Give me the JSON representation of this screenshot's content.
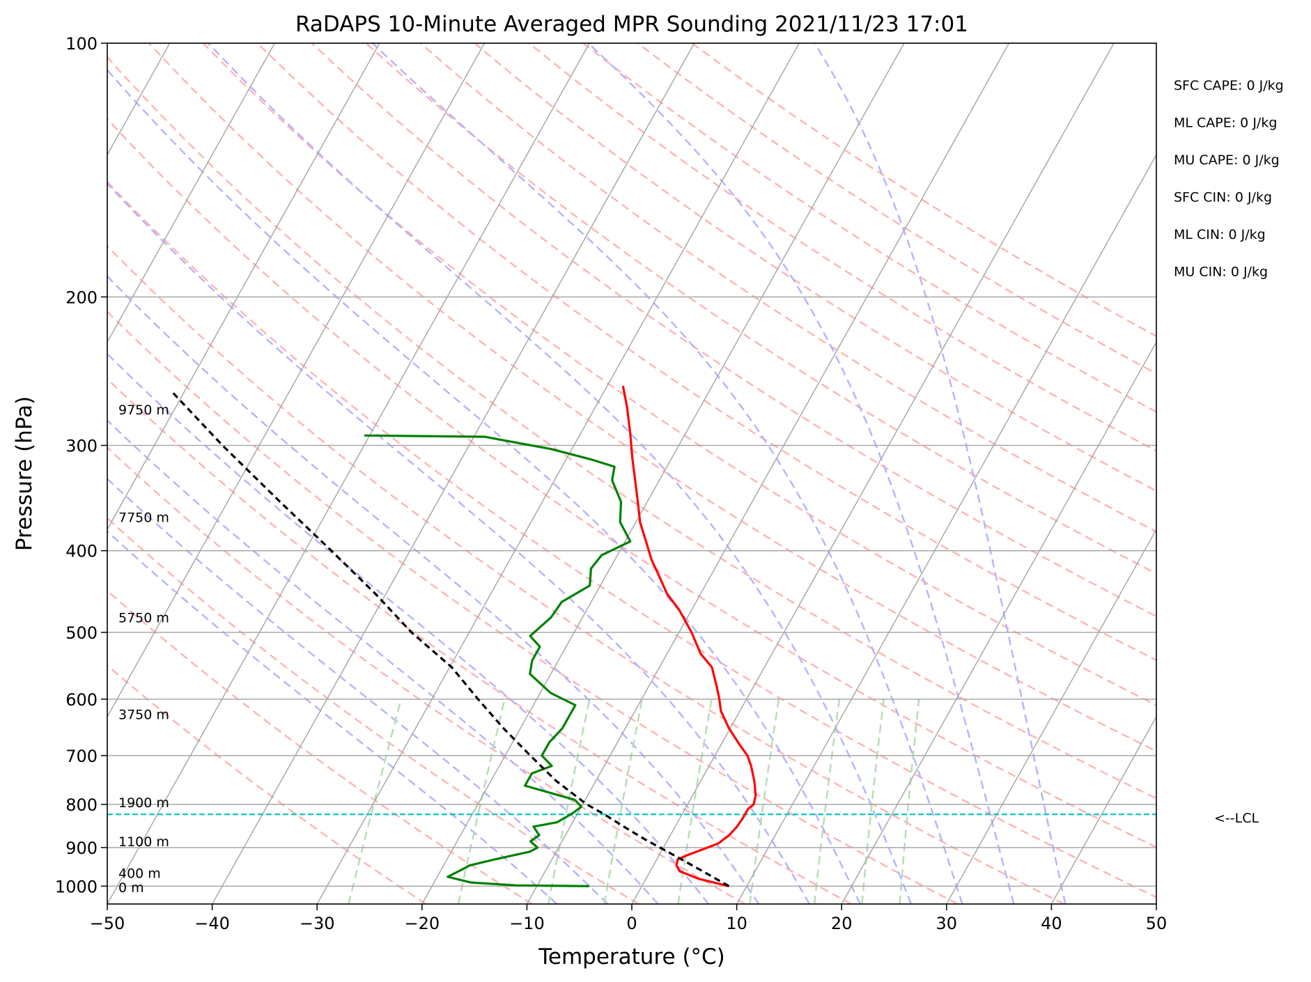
{
  "chart_data": {
    "type": "skew-t sounding",
    "title": "RaDAPS 10-Minute Averaged MPR Sounding 2021/11/23 17:01",
    "xlabel": "Temperature (°C)",
    "ylabel": "Pressure (hPa)",
    "xlim": [
      -50,
      50
    ],
    "ylim": [
      1050,
      100
    ],
    "y_scale": "log",
    "x_ticks": [
      -50,
      -40,
      -30,
      -20,
      -10,
      0,
      10,
      20,
      30,
      40,
      50
    ],
    "x_tick_labels": [
      "−50",
      "−40",
      "−30",
      "−20",
      "−10",
      "0",
      "10",
      "20",
      "30",
      "40",
      "50"
    ],
    "y_ticks": [
      1000,
      900,
      800,
      700,
      600,
      500,
      400,
      300,
      200,
      100
    ],
    "y_tick_labels": [
      "1000",
      "900",
      "800",
      "700",
      "600",
      "500",
      "400",
      "300",
      "200",
      "100"
    ],
    "grid": true,
    "colors": {
      "temperature": "#ff0000",
      "dewpoint": "#008000",
      "parcel": "#000000",
      "lcl": "#00bfbf",
      "isotherm": "#a8a8a8",
      "dry_adiabat": "#ffb3b3",
      "moist_adiabat": "#b3b3ff",
      "mixing_ratio": "#b3ddb3"
    },
    "series": [
      {
        "key": "temperature",
        "points": [
          [
            1000,
            8.3
          ],
          [
            980,
            5.0
          ],
          [
            960,
            2.8
          ],
          [
            945,
            2.2
          ],
          [
            930,
            2.0
          ],
          [
            920,
            2.6
          ],
          [
            905,
            3.8
          ],
          [
            890,
            5.0
          ],
          [
            870,
            5.6
          ],
          [
            850,
            5.9
          ],
          [
            830,
            6.0
          ],
          [
            810,
            6.0
          ],
          [
            800,
            6.3
          ],
          [
            780,
            6.0
          ],
          [
            750,
            5.1
          ],
          [
            720,
            4.0
          ],
          [
            700,
            3.1
          ],
          [
            680,
            1.8
          ],
          [
            650,
            -0.1
          ],
          [
            620,
            -1.8
          ],
          [
            600,
            -2.6
          ],
          [
            580,
            -3.5
          ],
          [
            550,
            -5.0
          ],
          [
            530,
            -6.8
          ],
          [
            500,
            -8.8
          ],
          [
            470,
            -11.2
          ],
          [
            450,
            -13.2
          ],
          [
            430,
            -14.8
          ],
          [
            410,
            -16.5
          ],
          [
            390,
            -18.0
          ],
          [
            370,
            -19.6
          ],
          [
            350,
            -20.9
          ],
          [
            330,
            -22.3
          ],
          [
            310,
            -23.8
          ],
          [
            290,
            -25.3
          ],
          [
            270,
            -27.0
          ],
          [
            255,
            -28.5
          ]
        ]
      },
      {
        "key": "dewpoint",
        "points": [
          [
            1000,
            -5.0
          ],
          [
            998,
            -12.0
          ],
          [
            990,
            -16.5
          ],
          [
            975,
            -19.0
          ],
          [
            955,
            -18.0
          ],
          [
            945,
            -17.5
          ],
          [
            930,
            -15.5
          ],
          [
            910,
            -12.5
          ],
          [
            900,
            -12.0
          ],
          [
            885,
            -13.0
          ],
          [
            870,
            -12.5
          ],
          [
            860,
            -13.0
          ],
          [
            850,
            -13.5
          ],
          [
            840,
            -11.5
          ],
          [
            820,
            -10.5
          ],
          [
            805,
            -10.0
          ],
          [
            790,
            -11.0
          ],
          [
            760,
            -16.5
          ],
          [
            735,
            -16.5
          ],
          [
            720,
            -15.0
          ],
          [
            700,
            -16.5
          ],
          [
            675,
            -16.5
          ],
          [
            650,
            -16.0
          ],
          [
            630,
            -16.0
          ],
          [
            610,
            -16.0
          ],
          [
            590,
            -19.0
          ],
          [
            560,
            -22.0
          ],
          [
            540,
            -22.5
          ],
          [
            520,
            -22.5
          ],
          [
            505,
            -24.0
          ],
          [
            480,
            -23.0
          ],
          [
            460,
            -22.8
          ],
          [
            440,
            -21.0
          ],
          [
            420,
            -21.8
          ],
          [
            405,
            -21.5
          ],
          [
            390,
            -19.5
          ],
          [
            370,
            -21.5
          ],
          [
            350,
            -22.5
          ],
          [
            330,
            -24.5
          ],
          [
            318,
            -25.0
          ],
          [
            312,
            -27.5
          ],
          [
            303,
            -32.0
          ],
          [
            293,
            -39.0
          ],
          [
            292,
            -50.5
          ]
        ]
      },
      {
        "key": "parcel",
        "points": [
          [
            1000,
            8.3
          ],
          [
            960,
            5.0
          ],
          [
            920,
            1.5
          ],
          [
            880,
            -2.2
          ],
          [
            850,
            -4.9
          ],
          [
            822,
            -7.4
          ],
          [
            800,
            -9.6
          ],
          [
            750,
            -13.8
          ],
          [
            700,
            -17.6
          ],
          [
            650,
            -21.6
          ],
          [
            600,
            -25.6
          ],
          [
            550,
            -29.8
          ],
          [
            500,
            -35.5
          ],
          [
            450,
            -41.0
          ],
          [
            400,
            -47.5
          ],
          [
            350,
            -55.0
          ],
          [
            300,
            -63.5
          ],
          [
            260,
            -71.0
          ]
        ]
      }
    ],
    "height_labels": [
      "9750 m",
      "7750 m",
      "5750 m",
      "3750 m",
      "1900 m",
      "1100 m",
      "400 m",
      "0 m"
    ],
    "height_label_pressures": [
      272,
      365,
      480,
      625,
      795,
      885,
      965,
      1003
    ],
    "lcl_pressure": 822,
    "lcl_label": "<--LCL",
    "indices": [
      "SFC CAPE: 0 J/kg",
      "ML CAPE: 0 J/kg",
      "MU CAPE: 0 J/kg",
      "SFC CIN: 0 J/kg",
      "ML CIN: 0 J/kg",
      "MU CIN: 0 J/kg"
    ],
    "legend": "none"
  }
}
